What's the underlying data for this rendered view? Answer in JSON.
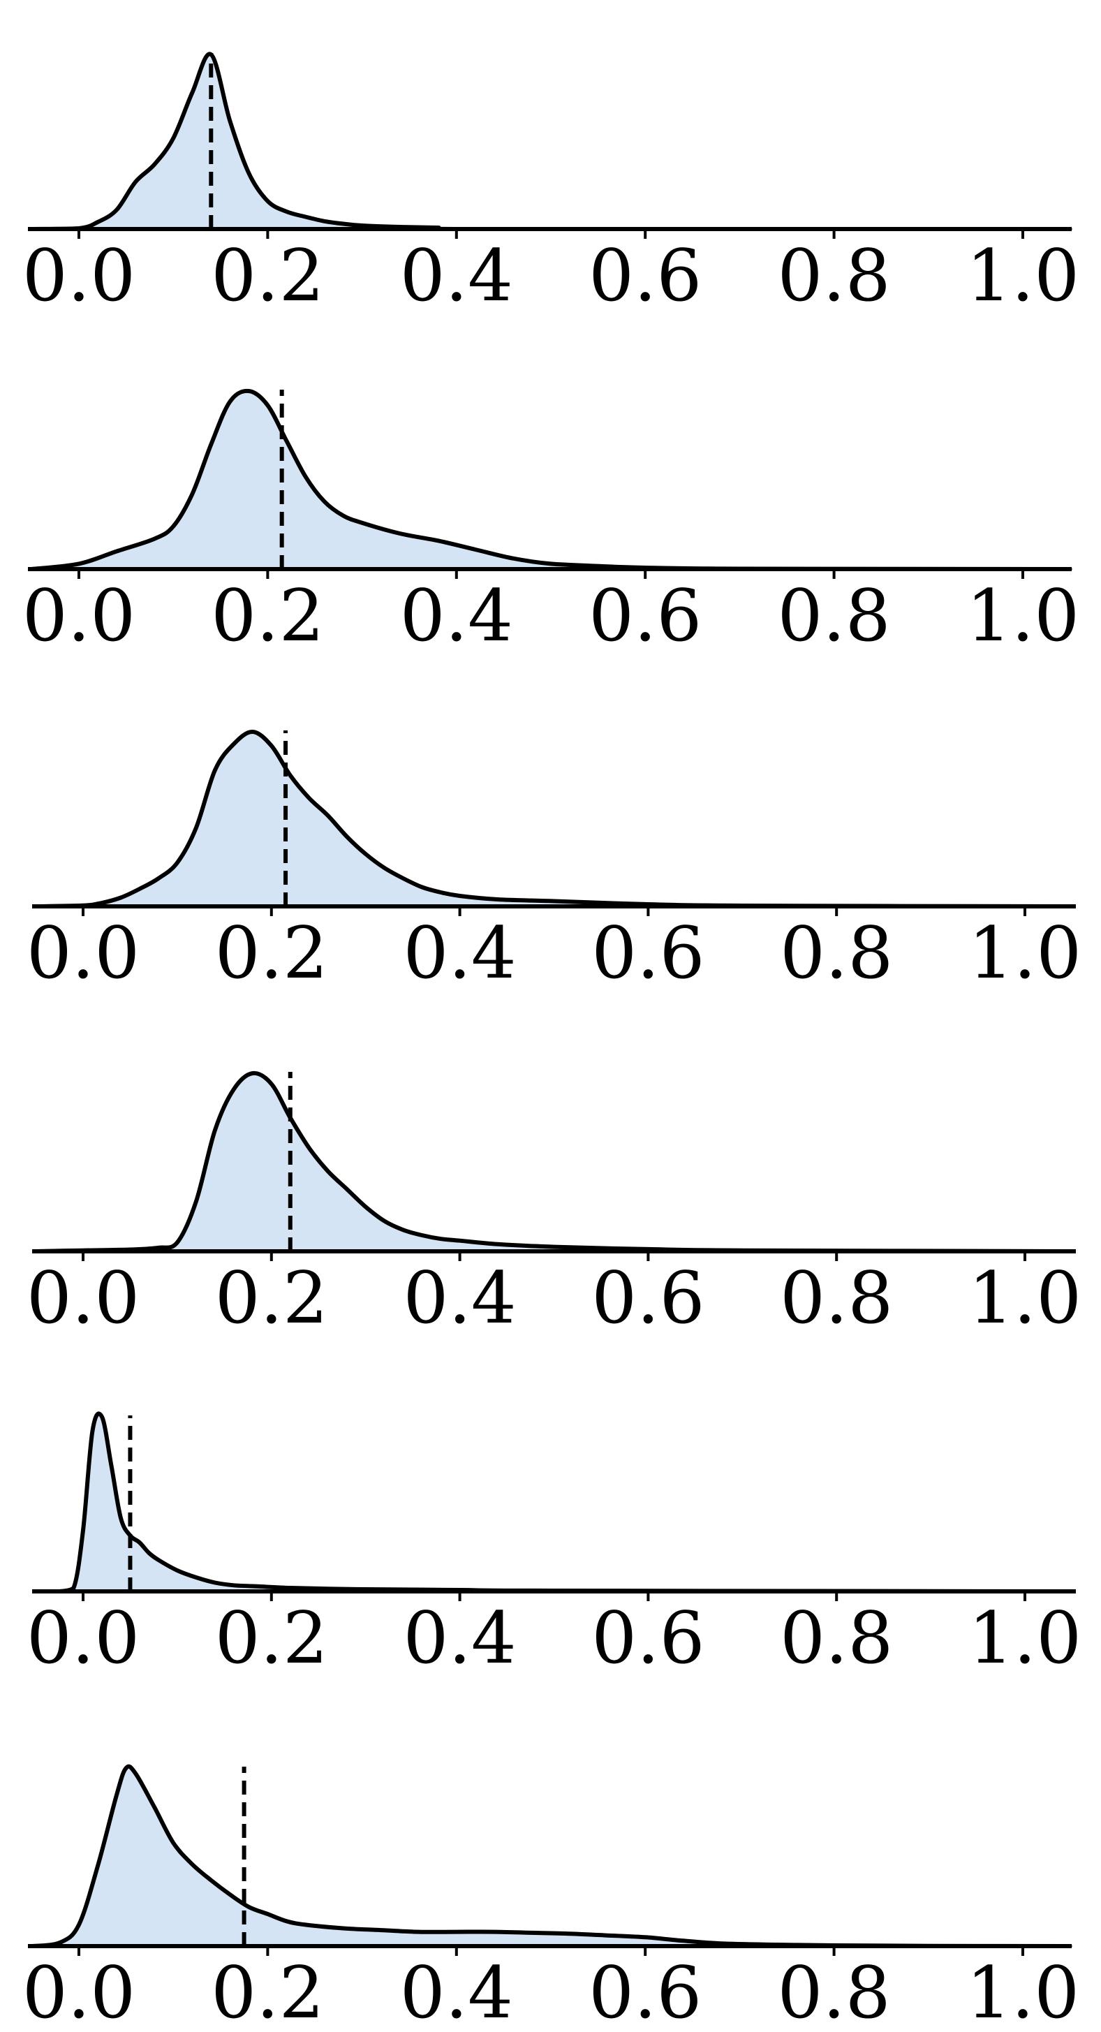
{
  "figure": {
    "fill_color": "#d4e4f4",
    "line_color": "#000000",
    "marker_style": "dashed"
  },
  "chart_data": [
    {
      "type": "area",
      "xlim": [
        -0.055,
        1.055
      ],
      "x_ticks": [
        0.0,
        0.2,
        0.4,
        0.6,
        0.8,
        1.0
      ],
      "x_tick_labels": [
        "0.0",
        "0.2",
        "0.4",
        "0.6",
        "0.8",
        "1.0"
      ],
      "y_axis_visible": false,
      "grid": false,
      "marker_line_x": 0.14,
      "series": [
        {
          "x": [
            -0.05,
            0.0,
            0.02,
            0.04,
            0.06,
            0.08,
            0.1,
            0.12,
            0.14,
            0.16,
            0.18,
            0.2,
            0.22,
            0.24,
            0.26,
            0.28,
            0.3,
            0.34,
            0.38,
            0.42,
            1.05
          ],
          "y": [
            0.0,
            0.004,
            0.04,
            0.11,
            0.27,
            0.37,
            0.52,
            0.78,
            1.0,
            0.62,
            0.32,
            0.16,
            0.1,
            0.07,
            0.045,
            0.03,
            0.02,
            0.012,
            0.008,
            0.0,
            0.0
          ]
        }
      ]
    },
    {
      "type": "area",
      "xlim": [
        -0.055,
        1.055
      ],
      "x_ticks": [
        0.0,
        0.2,
        0.4,
        0.6,
        0.8,
        1.0
      ],
      "x_tick_labels": [
        "0.0",
        "0.2",
        "0.4",
        "0.6",
        "0.8",
        "1.0"
      ],
      "y_axis_visible": false,
      "grid": false,
      "marker_line_x": 0.215,
      "series": [
        {
          "x": [
            -0.05,
            0.0,
            0.04,
            0.08,
            0.1,
            0.12,
            0.14,
            0.16,
            0.18,
            0.2,
            0.22,
            0.24,
            0.26,
            0.28,
            0.3,
            0.34,
            0.38,
            0.42,
            0.46,
            0.5,
            0.56,
            0.6,
            0.7,
            1.05
          ],
          "y": [
            0.0,
            0.03,
            0.1,
            0.17,
            0.24,
            0.42,
            0.7,
            0.94,
            1.0,
            0.92,
            0.72,
            0.52,
            0.38,
            0.3,
            0.26,
            0.2,
            0.16,
            0.11,
            0.06,
            0.03,
            0.015,
            0.008,
            0.002,
            0.0
          ]
        }
      ]
    },
    {
      "type": "area",
      "xlim": [
        -0.055,
        1.055
      ],
      "x_ticks": [
        0.0,
        0.2,
        0.4,
        0.6,
        0.8,
        1.0
      ],
      "x_tick_labels": [
        "0.0",
        "0.2",
        "0.4",
        "0.6",
        "0.8",
        "1.0"
      ],
      "y_axis_visible": false,
      "grid": false,
      "marker_line_x": 0.215,
      "series": [
        {
          "x": [
            -0.05,
            0.0,
            0.02,
            0.04,
            0.06,
            0.08,
            0.1,
            0.12,
            0.14,
            0.16,
            0.18,
            0.2,
            0.22,
            0.24,
            0.26,
            0.28,
            0.3,
            0.32,
            0.34,
            0.36,
            0.38,
            0.4,
            0.44,
            0.5,
            0.6,
            0.7,
            1.05
          ],
          "y": [
            0.0,
            0.005,
            0.02,
            0.05,
            0.1,
            0.16,
            0.25,
            0.45,
            0.78,
            0.93,
            1.0,
            0.92,
            0.75,
            0.62,
            0.52,
            0.4,
            0.3,
            0.22,
            0.16,
            0.11,
            0.08,
            0.06,
            0.04,
            0.03,
            0.012,
            0.004,
            0.0
          ]
        }
      ]
    },
    {
      "type": "area",
      "xlim": [
        -0.055,
        1.055
      ],
      "x_ticks": [
        0.0,
        0.2,
        0.4,
        0.6,
        0.8,
        1.0
      ],
      "x_tick_labels": [
        "0.0",
        "0.2",
        "0.4",
        "0.6",
        "0.8",
        "1.0"
      ],
      "y_axis_visible": false,
      "grid": false,
      "marker_line_x": 0.22,
      "series": [
        {
          "x": [
            -0.05,
            0.0,
            0.05,
            0.08,
            0.1,
            0.12,
            0.14,
            0.16,
            0.18,
            0.2,
            0.22,
            0.24,
            0.26,
            0.28,
            0.3,
            0.32,
            0.34,
            0.36,
            0.38,
            0.4,
            0.44,
            0.5,
            0.6,
            0.7,
            1.05
          ],
          "y": [
            0.0,
            0.005,
            0.01,
            0.02,
            0.05,
            0.28,
            0.68,
            0.91,
            1.0,
            0.94,
            0.75,
            0.58,
            0.45,
            0.35,
            0.25,
            0.17,
            0.12,
            0.09,
            0.07,
            0.06,
            0.04,
            0.025,
            0.012,
            0.005,
            0.0
          ]
        }
      ]
    },
    {
      "type": "area",
      "xlim": [
        -0.055,
        1.055
      ],
      "x_ticks": [
        0.0,
        0.2,
        0.4,
        0.6,
        0.8,
        1.0
      ],
      "x_tick_labels": [
        "0.0",
        "0.2",
        "0.4",
        "0.6",
        "0.8",
        "1.0"
      ],
      "y_axis_visible": false,
      "grid": false,
      "marker_line_x": 0.05,
      "series": [
        {
          "x": [
            -0.025,
            -0.01,
            0.0,
            0.01,
            0.02,
            0.03,
            0.04,
            0.05,
            0.06,
            0.07,
            0.08,
            0.1,
            0.12,
            0.14,
            0.16,
            0.18,
            0.22,
            0.26,
            0.3,
            0.4,
            0.5,
            1.05
          ],
          "y": [
            0.0,
            0.02,
            0.35,
            0.92,
            1.0,
            0.72,
            0.42,
            0.32,
            0.28,
            0.22,
            0.18,
            0.12,
            0.08,
            0.05,
            0.035,
            0.03,
            0.02,
            0.015,
            0.012,
            0.008,
            0.004,
            0.0
          ]
        }
      ]
    },
    {
      "type": "area",
      "xlim": [
        -0.055,
        1.055
      ],
      "x_ticks": [
        0.0,
        0.2,
        0.4,
        0.6,
        0.8,
        1.0
      ],
      "x_tick_labels": [
        "0.0",
        "0.2",
        "0.4",
        "0.6",
        "0.8",
        "1.0"
      ],
      "y_axis_visible": false,
      "grid": false,
      "marker_line_x": 0.175,
      "series": [
        {
          "x": [
            -0.05,
            -0.02,
            0.0,
            0.02,
            0.04,
            0.05,
            0.06,
            0.08,
            0.1,
            0.12,
            0.14,
            0.16,
            0.18,
            0.2,
            0.22,
            0.24,
            0.28,
            0.32,
            0.36,
            0.4,
            0.44,
            0.48,
            0.52,
            0.56,
            0.6,
            0.64,
            0.68,
            0.74,
            0.8,
            0.9,
            1.05
          ],
          "y": [
            0.0,
            0.02,
            0.12,
            0.45,
            0.85,
            1.0,
            0.97,
            0.78,
            0.58,
            0.46,
            0.37,
            0.29,
            0.22,
            0.18,
            0.14,
            0.12,
            0.1,
            0.09,
            0.08,
            0.08,
            0.08,
            0.075,
            0.07,
            0.06,
            0.05,
            0.03,
            0.015,
            0.008,
            0.004,
            0.001,
            0.0
          ]
        }
      ]
    }
  ]
}
